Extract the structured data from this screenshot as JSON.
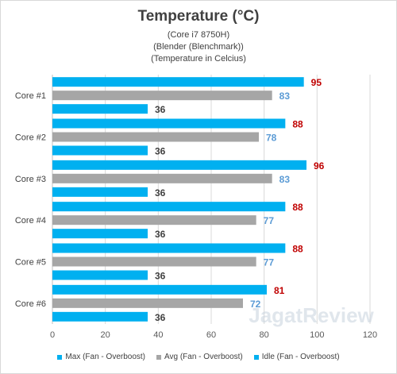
{
  "chart_data": {
    "type": "bar",
    "orientation": "horizontal",
    "title": "Temperature (°C)",
    "subtitle": [
      "(Core i7 8750H)",
      "(Blender (Blenchmark))",
      "(Temperature in Celcius)"
    ],
    "categories": [
      "Core #1",
      "Core #2",
      "Core #3",
      "Core #4",
      "Core #5",
      "Core #6"
    ],
    "series": [
      {
        "name": "Max (Fan - Overboost)",
        "values": [
          95,
          88,
          96,
          88,
          88,
          81
        ],
        "color": "#00b0f0",
        "label_color": "#c00000"
      },
      {
        "name": "Avg (Fan - Overboost)",
        "values": [
          83,
          78,
          83,
          77,
          77,
          72
        ],
        "color": "#a6a6a6",
        "label_color": "#5b9bd5"
      },
      {
        "name": "Idle (Fan - Overboost)",
        "values": [
          36,
          36,
          36,
          36,
          36,
          36
        ],
        "color": "#00b0f0",
        "label_color": "#404040"
      }
    ],
    "xlim": [
      0,
      120
    ],
    "xticks": [
      "0",
      "20",
      "40",
      "60",
      "80",
      "100",
      "120"
    ],
    "grid": true,
    "legend": "bottom",
    "watermark": "JagatReview"
  }
}
